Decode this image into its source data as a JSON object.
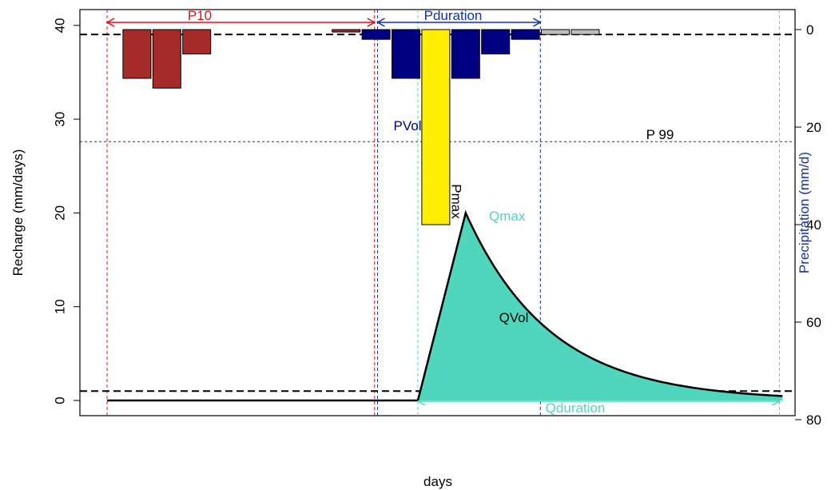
{
  "chart_data": {
    "type": "bar+area",
    "xlabel": "days",
    "ylabel": "Recharge (mm/days)",
    "y2label": "Precipitation (mm/d)",
    "ylim": [
      0,
      40
    ],
    "y2lim_reversed": [
      0,
      80
    ],
    "yticks": [
      0,
      10,
      20,
      30,
      40
    ],
    "y2ticks": [
      0,
      20,
      40,
      60,
      80
    ],
    "colors": {
      "p10": "#a52a2a",
      "pduration": "#000080",
      "pmax": "#ffee00",
      "after": "#bebebe",
      "qvol": "#4fd6bc",
      "p10_arrow": "#e01010",
      "pduration_arrow": "#1030b0",
      "qduration_arrow": "#4fd6bc",
      "pvol_label": "#000080",
      "qmax_label": "#4fd6bc"
    },
    "precipitation_bars": [
      {
        "day": 3,
        "value": 10,
        "group": "p10"
      },
      {
        "day": 4,
        "value": 12,
        "group": "p10"
      },
      {
        "day": 5,
        "value": 5,
        "group": "p10"
      },
      {
        "day": 10,
        "value": 0.5,
        "group": "p10"
      },
      {
        "day": 11,
        "value": 2,
        "group": "pduration"
      },
      {
        "day": 12,
        "value": 10,
        "group": "pduration"
      },
      {
        "day": 13,
        "value": 40,
        "group": "pmax"
      },
      {
        "day": 14,
        "value": 10,
        "group": "pduration"
      },
      {
        "day": 15,
        "value": 5,
        "group": "pduration"
      },
      {
        "day": 16,
        "value": 2,
        "group": "pduration"
      },
      {
        "day": 17,
        "value": 1,
        "group": "after"
      },
      {
        "day": 18,
        "value": 1,
        "group": "after"
      }
    ],
    "recharge": {
      "baseline": [
        [
          2,
          0
        ],
        [
          12.4,
          0
        ]
      ],
      "rise_start": [
        12.4,
        0
      ],
      "peak": [
        14.0,
        20.0
      ],
      "end": [
        24.6,
        0.6
      ],
      "decay_rate": 0.353
    },
    "reference_lines": {
      "p_threshold_y2": 1,
      "q_threshold_y": 1,
      "p99_y2": 23,
      "p99_label": "P 99"
    },
    "markers": {
      "p10_start": 2,
      "p10_end": 10.95,
      "pduration_start": 11.05,
      "pduration_end": 16.5,
      "qduration_start": 12.4,
      "qduration_end": 24.5
    },
    "labels": {
      "p10": "P10",
      "pduration": "Pduration",
      "pvol": "PVol",
      "pmax": "Pmax",
      "qmax": "Qmax",
      "qvol": "QVol",
      "qduration": "Qduration"
    }
  }
}
